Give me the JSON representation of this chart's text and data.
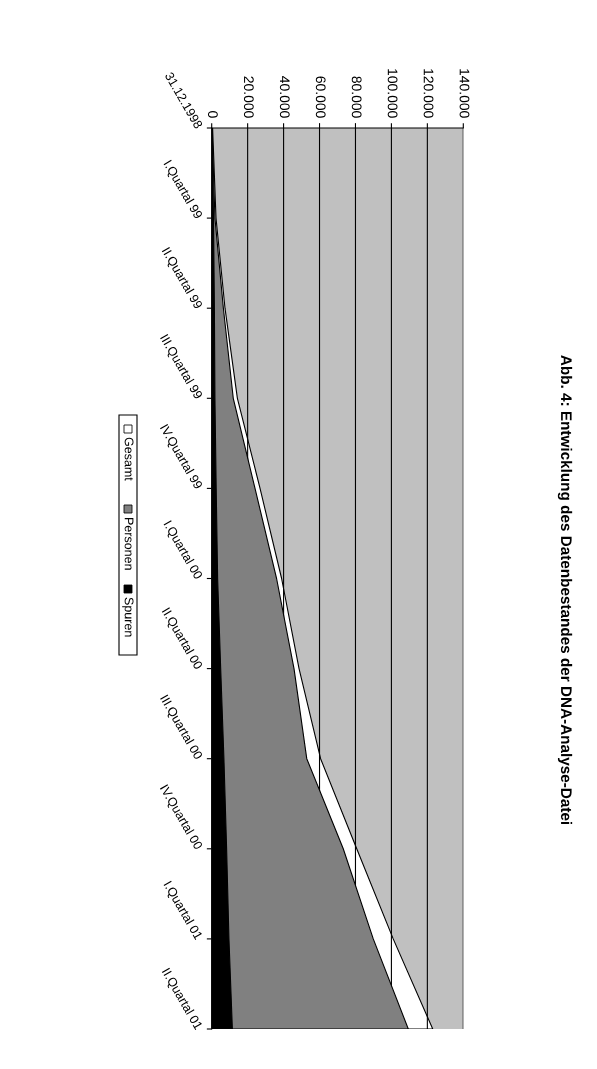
{
  "chart_data": {
    "type": "area",
    "orientation": "horizontal",
    "title": "Abb. 4: Entwicklung des Datenbestandes der DNA-Analyse-Datei",
    "categories": [
      "31.12.1998",
      "I.Quartal 99",
      "II.Quartal 99",
      "III.Quartal 99",
      "IV.Quartal 99",
      "I.Quartal 00",
      "II.Quartal 00",
      "III.Quartal 00",
      "IV.Quartal 00",
      "I.Quartal 01",
      "II.Quartal 01"
    ],
    "series": [
      {
        "name": "Gesamt",
        "color": "#ffffff",
        "values": [
          500,
          2400,
          7400,
          14300,
          26900,
          38900,
          48600,
          60600,
          80700,
          101000,
          123000
        ]
      },
      {
        "name": "Personen",
        "color": "#808080",
        "values": [
          200,
          1800,
          6500,
          12000,
          24100,
          36100,
          45800,
          52900,
          73200,
          89900,
          109400
        ]
      },
      {
        "name": "Spuren",
        "color": "#000000",
        "values": [
          300,
          1000,
          1500,
          1800,
          2500,
          3300,
          5000,
          6800,
          8300,
          9600,
          11500
        ]
      }
    ],
    "xlim": [
      0,
      140000
    ],
    "xticks": [
      {
        "value": 0,
        "label": "0"
      },
      {
        "value": 20000,
        "label": "20.000"
      },
      {
        "value": 40000,
        "label": "40.000"
      },
      {
        "value": 60000,
        "label": "60.000"
      },
      {
        "value": 80000,
        "label": "80.000"
      },
      {
        "value": 100000,
        "label": "100.000"
      },
      {
        "value": 120000,
        "label": "120.000"
      },
      {
        "value": 140000,
        "label": "140.000"
      }
    ],
    "grid": "x",
    "legend": "left"
  }
}
